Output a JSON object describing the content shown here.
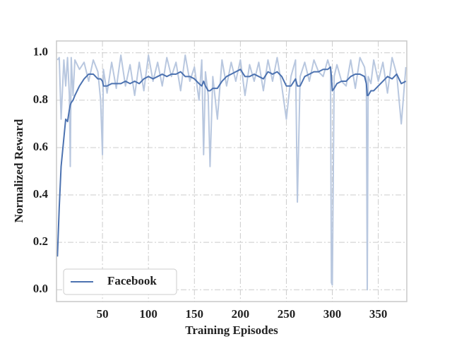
{
  "chart_data": {
    "type": "line",
    "xlabel": "Training Episodes",
    "ylabel": "Normalized Reward",
    "x": [
      1,
      3,
      5,
      8,
      10,
      12,
      14,
      15,
      16,
      18,
      20,
      25,
      30,
      35,
      40,
      45,
      48,
      50,
      51,
      55,
      60,
      65,
      70,
      75,
      80,
      85,
      90,
      95,
      100,
      105,
      110,
      115,
      120,
      125,
      130,
      135,
      140,
      145,
      150,
      155,
      158,
      160,
      162,
      165,
      167,
      170,
      175,
      180,
      185,
      190,
      195,
      200,
      205,
      210,
      215,
      220,
      225,
      230,
      235,
      240,
      245,
      250,
      255,
      260,
      262,
      265,
      270,
      275,
      280,
      285,
      290,
      295,
      298,
      299,
      300,
      302,
      305,
      310,
      315,
      320,
      325,
      330,
      335,
      337,
      338,
      339,
      342,
      345,
      350,
      355,
      360,
      365,
      370,
      375,
      380
    ],
    "series": [
      {
        "color": "#b8c7df",
        "values": [
          0.97,
          0.98,
          0.72,
          0.97,
          0.86,
          0.98,
          0.82,
          0.52,
          0.98,
          0.82,
          0.97,
          0.93,
          0.96,
          0.88,
          0.97,
          0.92,
          0.8,
          0.57,
          0.93,
          0.83,
          0.96,
          0.85,
          0.99,
          0.86,
          0.95,
          0.82,
          0.96,
          0.84,
          0.99,
          0.88,
          0.96,
          0.86,
          0.98,
          0.9,
          0.96,
          0.84,
          0.99,
          0.88,
          0.94,
          0.8,
          0.97,
          0.57,
          0.92,
          0.82,
          0.52,
          0.9,
          0.72,
          0.97,
          0.86,
          0.96,
          0.88,
          0.97,
          0.82,
          0.95,
          0.88,
          0.96,
          0.84,
          0.97,
          0.88,
          0.98,
          0.86,
          0.72,
          0.9,
          0.97,
          0.37,
          0.9,
          0.96,
          0.88,
          0.97,
          0.92,
          0.9,
          0.97,
          0.93,
          0.03,
          0.02,
          0.9,
          0.95,
          0.88,
          0.86,
          0.97,
          0.85,
          0.98,
          0.94,
          0.88,
          0.0,
          0.9,
          0.87,
          0.97,
          0.88,
          0.96,
          0.83,
          0.98,
          0.91,
          0.7,
          0.94
        ]
      },
      {
        "name": "Facebook",
        "color": "#4c72b0",
        "values": [
          0.14,
          0.35,
          0.52,
          0.64,
          0.72,
          0.71,
          0.76,
          0.78,
          0.79,
          0.8,
          0.82,
          0.86,
          0.89,
          0.91,
          0.91,
          0.89,
          0.89,
          0.88,
          0.86,
          0.86,
          0.87,
          0.87,
          0.87,
          0.88,
          0.87,
          0.88,
          0.87,
          0.89,
          0.9,
          0.89,
          0.9,
          0.91,
          0.9,
          0.91,
          0.91,
          0.92,
          0.9,
          0.9,
          0.89,
          0.87,
          0.86,
          0.88,
          0.86,
          0.84,
          0.84,
          0.85,
          0.85,
          0.88,
          0.9,
          0.91,
          0.92,
          0.93,
          0.9,
          0.9,
          0.91,
          0.9,
          0.89,
          0.92,
          0.91,
          0.92,
          0.9,
          0.86,
          0.86,
          0.89,
          0.86,
          0.86,
          0.9,
          0.91,
          0.92,
          0.92,
          0.93,
          0.93,
          0.94,
          0.9,
          0.84,
          0.85,
          0.87,
          0.88,
          0.88,
          0.9,
          0.91,
          0.91,
          0.9,
          0.87,
          0.82,
          0.82,
          0.84,
          0.84,
          0.86,
          0.88,
          0.9,
          0.89,
          0.91,
          0.87,
          0.88
        ]
      }
    ],
    "xlim": [
      0,
      381
    ],
    "xticks": [
      50,
      100,
      150,
      200,
      250,
      300,
      350
    ],
    "ylim": [
      -0.05,
      1.05
    ],
    "yticks": [
      {
        "value": 0,
        "label": "0.0"
      },
      0.2,
      0.4,
      0.6,
      0.8,
      {
        "value": 1,
        "label": "1.0"
      }
    ],
    "grid": true,
    "legend": "lower left"
  }
}
